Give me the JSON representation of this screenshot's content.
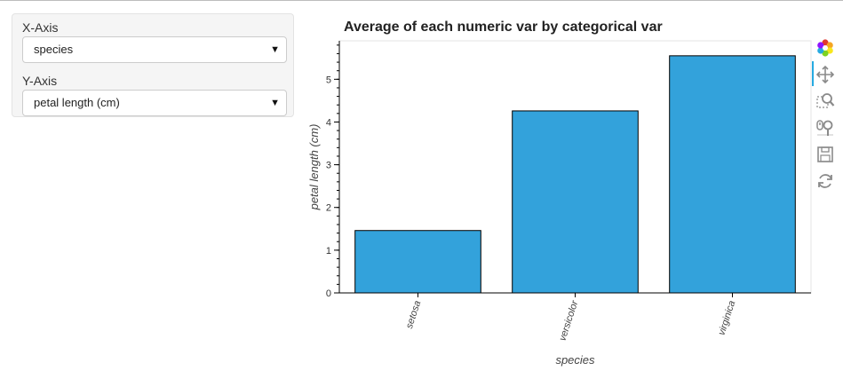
{
  "controls": {
    "x_axis_label": "X-Axis",
    "x_axis_value": "species",
    "y_axis_label": "Y-Axis",
    "y_axis_value": "petal length (cm)"
  },
  "toolbar": {
    "tools": [
      "bokeh-logo-icon",
      "pan-icon",
      "box-zoom-icon",
      "wheel-zoom-icon",
      "save-icon",
      "reset-icon"
    ],
    "active": "pan-icon"
  },
  "chart_data": {
    "type": "bar",
    "title": "Average of each numeric var by categorical var",
    "xlabel": "species",
    "ylabel": "petal length (cm)",
    "categories": [
      "setosa",
      "versicolor",
      "virginica"
    ],
    "values": [
      1.46,
      4.26,
      5.55
    ],
    "ylim": [
      0,
      5.9
    ],
    "yticks": [
      0,
      1,
      2,
      3,
      4,
      5
    ],
    "bar_color": "#33a2db",
    "bar_outline": "#000000",
    "grid": false,
    "legend": "none"
  }
}
